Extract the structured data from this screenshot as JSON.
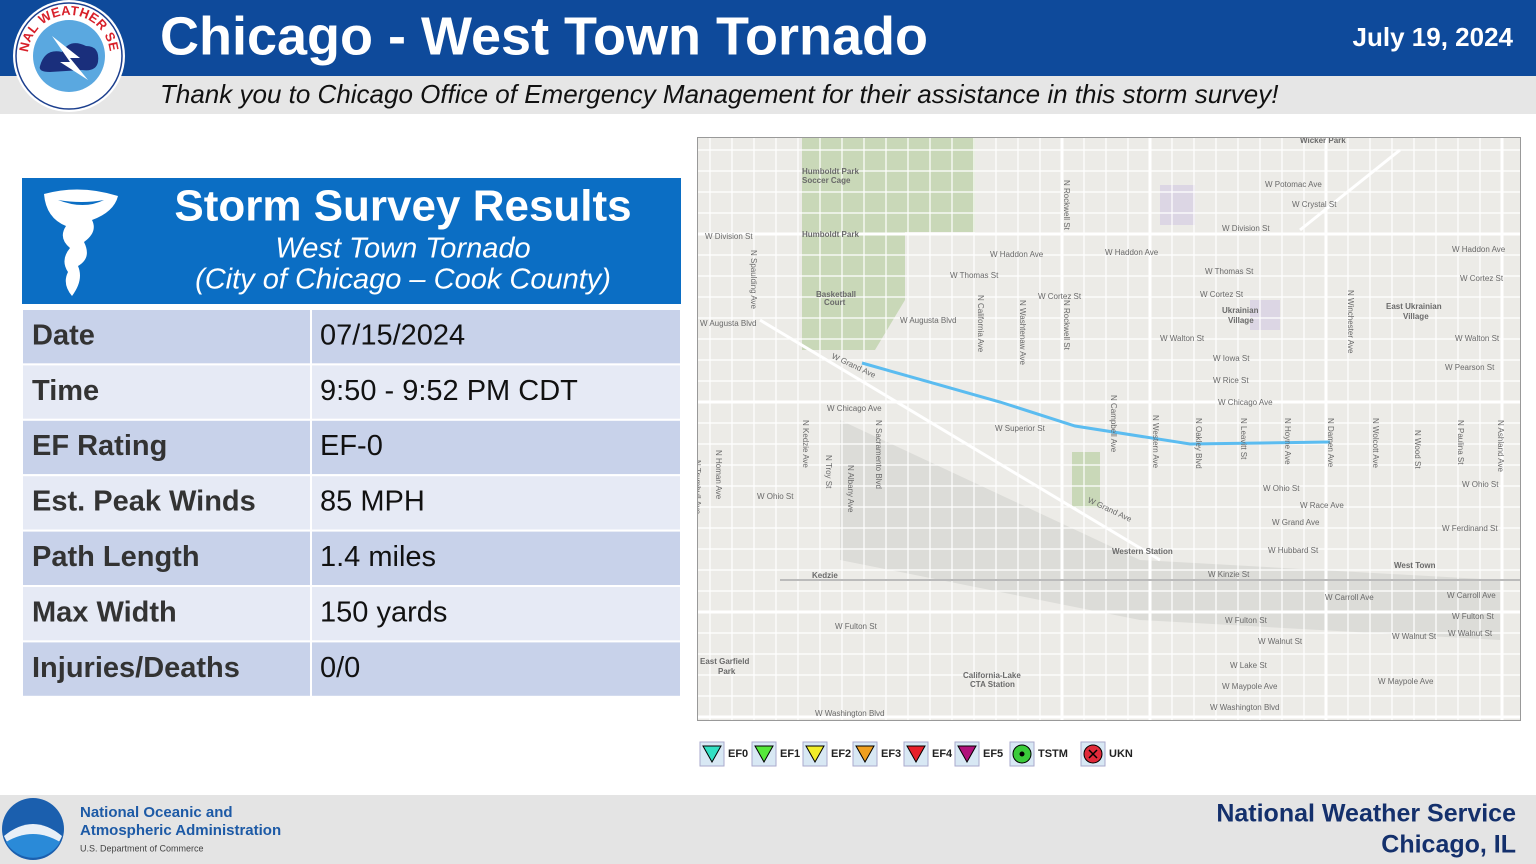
{
  "header": {
    "logo_text": "NATIONAL WEATHER SERVICE",
    "title": "Chicago - West Town Tornado",
    "date": "July 19, 2024",
    "subtitle": "Thank you to Chicago Office of Emergency Management for their assistance in this storm survey!"
  },
  "card": {
    "title": "Storm Survey Results",
    "subtitle": "West Town Tornado",
    "location": "(City of Chicago – Cook County)"
  },
  "table": {
    "rows": [
      [
        "Date",
        "07/15/2024"
      ],
      [
        "Time",
        "9:50 - 9:52 PM CDT"
      ],
      [
        "EF Rating",
        "EF-0"
      ],
      [
        "Est. Peak Winds",
        "85 MPH"
      ],
      [
        "Path Length",
        "1.4 miles"
      ],
      [
        "Max Width",
        "150 yards"
      ],
      [
        "Injuries/Deaths",
        "0/0"
      ]
    ]
  },
  "map": {
    "labels": [
      "Wicker Park",
      "Humboldt Park",
      "Soccer Cage",
      "Humboldt Park",
      "W Division St",
      "W Haddon Ave",
      "W Haddon Ave",
      "W Thomas St",
      "W Cortez St",
      "Basketball",
      "Court",
      "W Augusta Blvd",
      "W Augusta Blvd",
      "W Grand Ave",
      "W Chicago Ave",
      "W Superior St",
      "W Ohio St",
      "W Fulton St",
      "W Washington Blvd",
      "East Garfield",
      "Park",
      "California-Lake",
      "CTA Station",
      "Western Station",
      "Kedzie",
      "Ukrainian",
      "Village",
      "East Ukrainian",
      "Village",
      "West Town",
      "W Potomac Ave",
      "W Crystal St",
      "W Division St",
      "W Thomas St",
      "W Cortez St",
      "W Walton St",
      "W Iowa St",
      "W Rice St",
      "W Chicago Ave",
      "W Ohio St",
      "W Race Ave",
      "W Grand Ave",
      "W Grand Ave",
      "W Hubbard St",
      "W Kinzie St",
      "W Carroll Ave",
      "W Fulton St",
      "W Walnut St",
      "W Lake St",
      "W Maypole Ave",
      "W Washington Blvd",
      "W Haddon Ave",
      "W Cortez St",
      "W Walton St",
      "W Pearson St",
      "W Ohio St",
      "W Ferdinand St",
      "W Carroll Ave",
      "W Fulton St",
      "W Walnut St",
      "W Walnut St",
      "W Maypole Ave",
      "N Spaulding Ave",
      "N Homan Ave",
      "N Trumbull Ave",
      "N Kedzie Ave",
      "N Troy St",
      "N Albany Ave",
      "N Sacramento Blvd",
      "N California Ave",
      "N Washtenaw Ave",
      "N Rockwell St",
      "N Rockwell St",
      "N Campbell Ave",
      "N Western Ave",
      "N Oakley Blvd",
      "N Leavitt St",
      "N Hoyne Ave",
      "N Damen Ave",
      "N Winchester Ave",
      "N Wolcott Ave",
      "N Wood St",
      "N Paulina St",
      "N Ashland Ave"
    ]
  },
  "legend": {
    "items": [
      {
        "label": "EF0",
        "color": "#33e0c4"
      },
      {
        "label": "EF1",
        "color": "#55e83a"
      },
      {
        "label": "EF2",
        "color": "#f2ee2a"
      },
      {
        "label": "EF3",
        "color": "#f0a020"
      },
      {
        "label": "EF4",
        "color": "#e8202a"
      },
      {
        "label": "EF5",
        "color": "#b0107a"
      },
      {
        "label": "TSTM",
        "color": "#3acb3a"
      },
      {
        "label": "UKN",
        "color": "#e02a3a"
      }
    ]
  },
  "footer": {
    "noaa": [
      "National Oceanic and",
      "Atmospheric Administration"
    ],
    "department": "U.S. Department of Commerce",
    "office": [
      "National Weather Service",
      "Chicago, IL"
    ]
  }
}
